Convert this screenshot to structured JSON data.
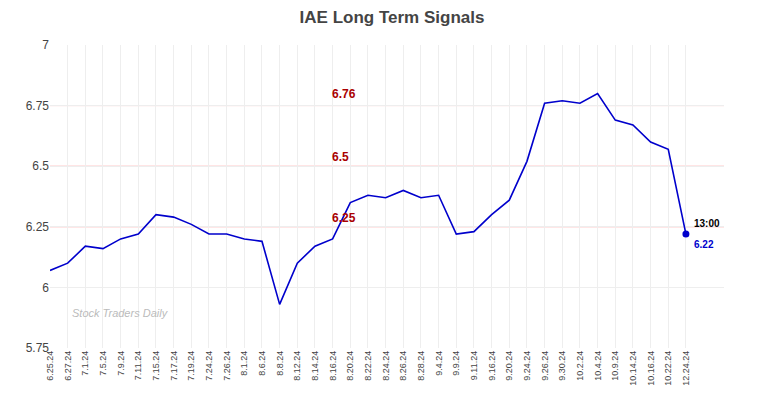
{
  "chart_data": {
    "type": "line",
    "title": "IAE Long Term Signals",
    "categories": [
      "6.25.24",
      "6.27.24",
      "7.1.24",
      "7.5.24",
      "7.9.24",
      "7.11.24",
      "7.15.24",
      "7.17.24",
      "7.19.24",
      "7.24.24",
      "7.26.24",
      "8.1.24",
      "8.6.24",
      "8.8.24",
      "8.12.24",
      "8.14.24",
      "8.16.24",
      "8.20.24",
      "8.22.24",
      "8.24.24",
      "8.26.24",
      "8.28.24",
      "9.4.24",
      "9.9.24",
      "9.11.24",
      "9.16.24",
      "9.20.24",
      "9.24.24",
      "9.26.24",
      "9.30.24",
      "10.2.24",
      "10.4.24",
      "10.9.24",
      "10.14.24",
      "10.16.24",
      "10.22.24",
      "12.24.24"
    ],
    "values": [
      6.07,
      6.1,
      6.17,
      6.16,
      6.2,
      6.22,
      6.3,
      6.29,
      6.26,
      6.22,
      6.22,
      6.2,
      6.19,
      5.93,
      6.1,
      6.17,
      6.2,
      6.35,
      6.38,
      6.37,
      6.4,
      6.37,
      6.38,
      6.22,
      6.23,
      6.3,
      6.36,
      6.52,
      6.76,
      6.77,
      6.76,
      6.8,
      6.69,
      6.67,
      6.6,
      6.57,
      6.22
    ],
    "color": "#0000cc",
    "ylim": [
      5.75,
      7
    ],
    "yticks": [
      5.75,
      6,
      6.25,
      6.5,
      6.75,
      7
    ],
    "grid": true,
    "hlines": [
      6.25,
      6.5,
      6.75
    ],
    "hline_color": "#ffaaaa",
    "annotations": [
      {
        "text": "6.76",
        "y": 6.76,
        "color": "#aa0000"
      },
      {
        "text": "6.5",
        "y": 6.5,
        "color": "#aa0000"
      },
      {
        "text": "6.25",
        "y": 6.25,
        "color": "#aa0000"
      }
    ],
    "last_point": {
      "category": "12.24.24",
      "value": 6.22,
      "label": "13:00"
    },
    "watermark": {
      "text": "Stock Traders Daily",
      "color": "#bbbbbb"
    }
  }
}
